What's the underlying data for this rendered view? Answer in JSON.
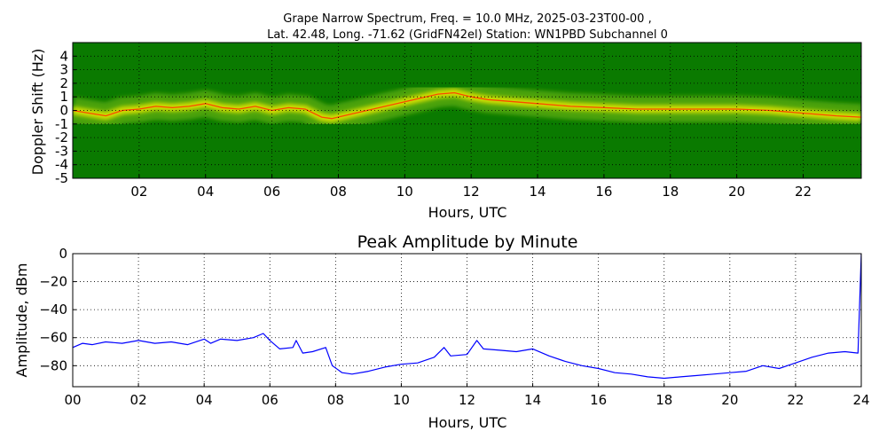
{
  "header": {
    "line1": "Grape Narrow Spectrum, Freq. = 10.0 MHz, 2025-03-23T00-00 ,",
    "line2": "Lat.  42.48, Long. -71.62 (GridFN42el) Station: WN1PBD Subchannel 0"
  },
  "colors": {
    "spectrogram_background": "#0a7a00",
    "spectrogram_mid": "#7fc21a",
    "spectrogram_high": "#e8e800",
    "spectrogram_peak": "#ff3a00",
    "amplitude_line": "#0000ff",
    "grid": "#000000"
  },
  "chart_data": [
    {
      "type": "heatmap",
      "title": "",
      "xlabel": "Hours, UTC",
      "ylabel": "Doppler Shift (Hz)",
      "xlim": [
        0,
        23.75
      ],
      "ylim": [
        -5,
        5
      ],
      "x_ticks": [
        2,
        4,
        6,
        8,
        10,
        12,
        14,
        16,
        18,
        20,
        22
      ],
      "x_tick_labels": [
        "02",
        "04",
        "06",
        "08",
        "10",
        "12",
        "14",
        "16",
        "18",
        "20",
        "22"
      ],
      "y_ticks": [
        4,
        3,
        2,
        1,
        0,
        -1,
        -2,
        -3,
        -4,
        -5
      ],
      "y_tick_labels": [
        "4",
        "3",
        "2",
        "1",
        "0",
        "-1",
        "-2",
        "-3",
        "-4",
        "-5"
      ],
      "grid": true,
      "peak_trace": {
        "x": [
          0,
          0.5,
          1,
          1.5,
          2,
          2.5,
          3,
          3.5,
          4,
          4.5,
          5,
          5.5,
          6,
          6.5,
          7,
          7.5,
          7.8,
          11,
          11.5,
          12,
          12.5,
          13,
          13.5,
          14,
          15,
          16,
          17,
          18,
          19,
          20,
          21,
          22,
          23,
          23.75
        ],
        "y": [
          0,
          -0.2,
          -0.4,
          0,
          0.1,
          0.3,
          0.2,
          0.3,
          0.5,
          0.2,
          0.1,
          0.3,
          0,
          0.2,
          0.1,
          -0.5,
          -0.6,
          1.2,
          1.3,
          1.0,
          0.8,
          0.7,
          0.6,
          0.5,
          0.3,
          0.2,
          0.1,
          0.1,
          0.1,
          0.1,
          0.0,
          -0.2,
          -0.4,
          -0.5
        ]
      }
    },
    {
      "type": "line",
      "title": "Peak Amplitude by Minute",
      "xlabel": "Hours, UTC",
      "ylabel": "Amplitude, dBm",
      "xlim": [
        0,
        24
      ],
      "ylim": [
        -95,
        0
      ],
      "x_ticks": [
        0,
        2,
        4,
        6,
        8,
        10,
        12,
        14,
        16,
        18,
        20,
        22,
        24
      ],
      "x_tick_labels": [
        "00",
        "02",
        "04",
        "06",
        "08",
        "10",
        "12",
        "14",
        "16",
        "18",
        "20",
        "22",
        "24"
      ],
      "y_ticks": [
        0,
        -20,
        -40,
        -60,
        -80
      ],
      "y_tick_labels": [
        "0",
        "−20",
        "−40",
        "−60",
        "−80"
      ],
      "grid": true,
      "series": [
        {
          "x": [
            0,
            0.3,
            0.6,
            1,
            1.5,
            2,
            2.5,
            3,
            3.5,
            4,
            4.2,
            4.5,
            5,
            5.5,
            5.8,
            6,
            6.3,
            6.7,
            6.8,
            7,
            7.3,
            7.7,
            7.9,
            8.2,
            8.5,
            9,
            9.5,
            10,
            10.5,
            11,
            11.3,
            11.5,
            12,
            12.3,
            12.5,
            13,
            13.5,
            14,
            14.5,
            15,
            15.5,
            16,
            16.5,
            17,
            17.5,
            18,
            18.5,
            19,
            19.5,
            20,
            20.5,
            21,
            21.5,
            22,
            22.5,
            23,
            23.5,
            23.9,
            24
          ],
          "y": [
            -67,
            -64,
            -65,
            -63,
            -64,
            -62,
            -64,
            -63,
            -65,
            -61,
            -64,
            -61,
            -62,
            -60,
            -57,
            -62,
            -68,
            -67,
            -62,
            -71,
            -70,
            -67,
            -80,
            -85,
            -86,
            -84,
            -81,
            -79,
            -78,
            -74,
            -67,
            -73,
            -72,
            -62,
            -68,
            -69,
            -70,
            -68,
            -73,
            -77,
            -80,
            -82,
            -85,
            -86,
            -88,
            -89,
            -88,
            -87,
            -86,
            -85,
            -84,
            -80,
            -82,
            -78,
            -74,
            -71,
            -70,
            -71,
            0
          ]
        }
      ]
    }
  ]
}
